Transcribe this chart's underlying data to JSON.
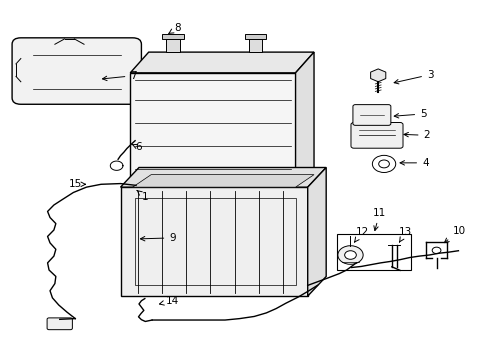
{
  "bg_color": "#ffffff",
  "line_color": "#000000",
  "label_color": "#000000",
  "fig_width": 4.89,
  "fig_height": 3.6,
  "dpi": 100
}
